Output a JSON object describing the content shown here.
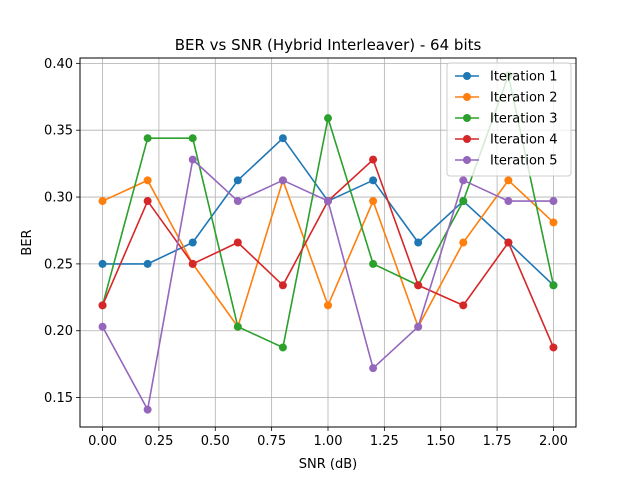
{
  "chart_data": {
    "type": "line",
    "title": "BER vs SNR (Hybrid Interleaver) - 64 bits",
    "xlabel": "SNR (dB)",
    "ylabel": "BER",
    "x": [
      0.0,
      0.2,
      0.4,
      0.6,
      0.8,
      1.0,
      1.2,
      1.4,
      1.6,
      1.8,
      2.0
    ],
    "xlim": [
      -0.1,
      2.1
    ],
    "ylim": [
      0.128,
      0.404
    ],
    "xticks": [
      0.0,
      0.25,
      0.5,
      0.75,
      1.0,
      1.25,
      1.5,
      1.75,
      2.0
    ],
    "xtick_labels": [
      "0.00",
      "0.25",
      "0.50",
      "0.75",
      "1.00",
      "1.25",
      "1.50",
      "1.75",
      "2.00"
    ],
    "yticks": [
      0.15,
      0.2,
      0.25,
      0.3,
      0.35,
      0.4
    ],
    "ytick_labels": [
      "0.15",
      "0.20",
      "0.25",
      "0.30",
      "0.35",
      "0.40"
    ],
    "grid": true,
    "legend_position": "top-right",
    "series": [
      {
        "name": "Iteration 1",
        "color": "#1f77b4",
        "values": [
          0.25,
          0.25,
          0.266,
          0.3125,
          0.344,
          0.297,
          0.3125,
          0.266,
          0.297,
          0.266,
          0.234
        ]
      },
      {
        "name": "Iteration 2",
        "color": "#ff7f0e",
        "values": [
          0.297,
          0.3125,
          0.25,
          0.203,
          0.3125,
          0.219,
          0.297,
          0.203,
          0.266,
          0.3125,
          0.281
        ]
      },
      {
        "name": "Iteration 3",
        "color": "#2ca02c",
        "values": [
          0.219,
          0.344,
          0.344,
          0.203,
          0.1875,
          0.359,
          0.25,
          0.234,
          0.297,
          0.391,
          0.234
        ]
      },
      {
        "name": "Iteration 4",
        "color": "#d62728",
        "values": [
          0.219,
          0.297,
          0.25,
          0.266,
          0.234,
          0.297,
          0.328,
          0.234,
          0.219,
          0.266,
          0.1875
        ]
      },
      {
        "name": "Iteration 5",
        "color": "#9467bd",
        "values": [
          0.203,
          0.141,
          0.328,
          0.297,
          0.3125,
          0.297,
          0.172,
          0.203,
          0.3125,
          0.297,
          0.297
        ]
      }
    ]
  }
}
